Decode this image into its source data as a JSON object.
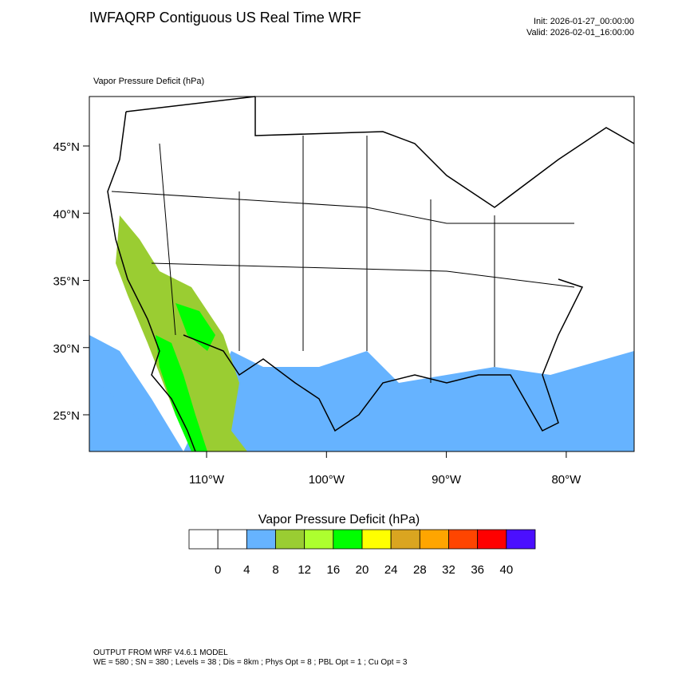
{
  "header": {
    "title": "IWFAQRP Contiguous US Real Time WRF",
    "init": "Init: 2026-01-27_00:00:00",
    "valid": "Valid: 2026-02-01_16:00:00"
  },
  "map": {
    "field_label": "Vapor Pressure Deficit   (hPa)",
    "lat_ticks": [
      {
        "value": 45,
        "label": "45°N"
      },
      {
        "value": 40,
        "label": "40°N"
      },
      {
        "value": 35,
        "label": "35°N"
      },
      {
        "value": 30,
        "label": "30°N"
      },
      {
        "value": 25,
        "label": "25°N"
      }
    ],
    "lon_ticks": [
      {
        "value": -110,
        "label": "110°W"
      },
      {
        "value": -100,
        "label": "100°W"
      },
      {
        "value": -90,
        "label": "90°W"
      },
      {
        "value": -80,
        "label": "80°W"
      }
    ]
  },
  "colorbar": {
    "title": "Vapor Pressure Deficit  (hPa)",
    "colors": [
      "#ffffff",
      "#ffffff",
      "#66b3ff",
      "#9acd32",
      "#adff2f",
      "#00ff00",
      "#ffff00",
      "#daa520",
      "#ffa500",
      "#ff4500",
      "#ff0000",
      "#4b0fff"
    ],
    "levels": [
      0,
      4,
      8,
      12,
      16,
      20,
      24,
      28,
      32,
      36,
      40
    ]
  },
  "footer": {
    "line1": "OUTPUT FROM WRF V4.6.1 MODEL",
    "line2": "WE = 580 ; SN = 380 ; Levels = 38 ; Dis = 8km ; Phys Opt = 8 ; PBL Opt = 1 ; Cu Opt = 3"
  }
}
